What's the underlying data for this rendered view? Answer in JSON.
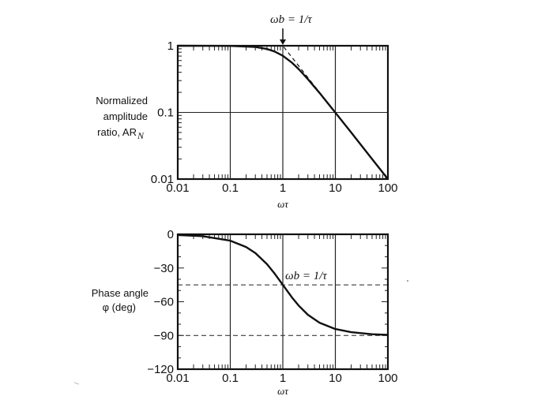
{
  "chart_data": [
    {
      "type": "line",
      "title": "",
      "xlabel": "ωτ",
      "ylabel_lines": [
        "Normalized",
        "amplitude",
        "ratio, AR"
      ],
      "ylabel_subscript": "N",
      "xscale": "log",
      "yscale": "log",
      "xlim": [
        0.01,
        100
      ],
      "ylim": [
        0.01,
        1
      ],
      "x_ticks": [
        0.01,
        0.1,
        1,
        10,
        100
      ],
      "x_tick_labels": [
        "0.01",
        "0.1",
        "1",
        "10",
        "100"
      ],
      "y_ticks": [
        0.01,
        0.1,
        1
      ],
      "y_tick_labels": [
        "0.01",
        "0.1",
        "1"
      ],
      "grid": true,
      "annotation": "ωb = 1/τ",
      "series": [
        {
          "style": "solid",
          "x": [
            0.01,
            0.1,
            0.3,
            0.5,
            0.7,
            1,
            1.5,
            2,
            3,
            5,
            10,
            20,
            50,
            100
          ],
          "y": [
            1,
            0.995,
            0.958,
            0.894,
            0.819,
            0.707,
            0.555,
            0.447,
            0.316,
            0.196,
            0.0995,
            0.05,
            0.02,
            0.01
          ]
        },
        {
          "style": "dashed",
          "x": [
            0.01,
            1,
            100
          ],
          "y": [
            1,
            1,
            0.01
          ]
        }
      ]
    },
    {
      "type": "line",
      "title": "",
      "xlabel": "ωτ",
      "ylabel_lines": [
        "Phase angle",
        "φ (deg)"
      ],
      "xscale": "log",
      "xlim": [
        0.01,
        100
      ],
      "ylim": [
        -120,
        0
      ],
      "x_ticks": [
        0.01,
        0.1,
        1,
        10,
        100
      ],
      "x_tick_labels": [
        "0.01",
        "0.1",
        "1",
        "10",
        "100"
      ],
      "y_ticks": [
        0,
        -30,
        -60,
        -90,
        -120
      ],
      "y_tick_labels": [
        "0",
        "−30",
        "−60",
        "−90",
        "−120"
      ],
      "grid": true,
      "annotation": "ωb = 1/τ",
      "reference_lines": [
        -45,
        -90
      ],
      "series": [
        {
          "style": "solid",
          "x": [
            0.01,
            0.03,
            0.1,
            0.2,
            0.3,
            0.5,
            0.7,
            1,
            1.5,
            2,
            3,
            5,
            10,
            20,
            50,
            100
          ],
          "y": [
            -0.6,
            -1.7,
            -5.7,
            -11.3,
            -16.7,
            -26.6,
            -35.0,
            -45.0,
            -56.3,
            -63.4,
            -71.6,
            -78.7,
            -84.3,
            -87.1,
            -88.9,
            -89.4
          ]
        }
      ]
    }
  ]
}
